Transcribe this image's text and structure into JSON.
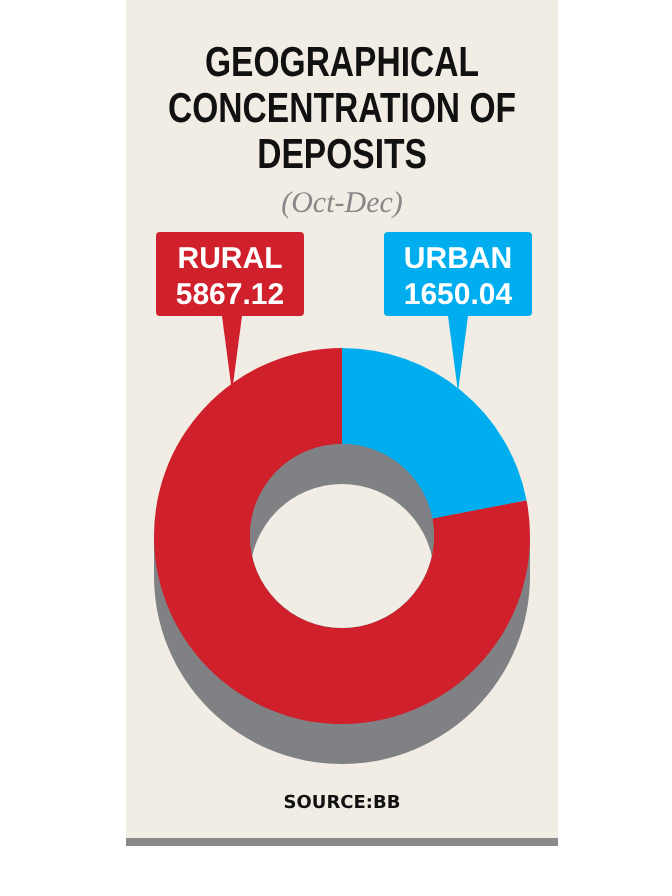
{
  "chart_data": {
    "type": "donut",
    "title": "GEOGRAPHICAL CONCENTRATION OF DEPOSITS",
    "subtitle": "(Oct-Dec)",
    "categories": [
      "RURAL",
      "URBAN"
    ],
    "values": [
      5867.12,
      1650.04
    ],
    "colors": [
      "#d0202b",
      "#00aeef"
    ],
    "data_labels": true,
    "annotations": [
      "SOURCE:BB"
    ]
  }
}
